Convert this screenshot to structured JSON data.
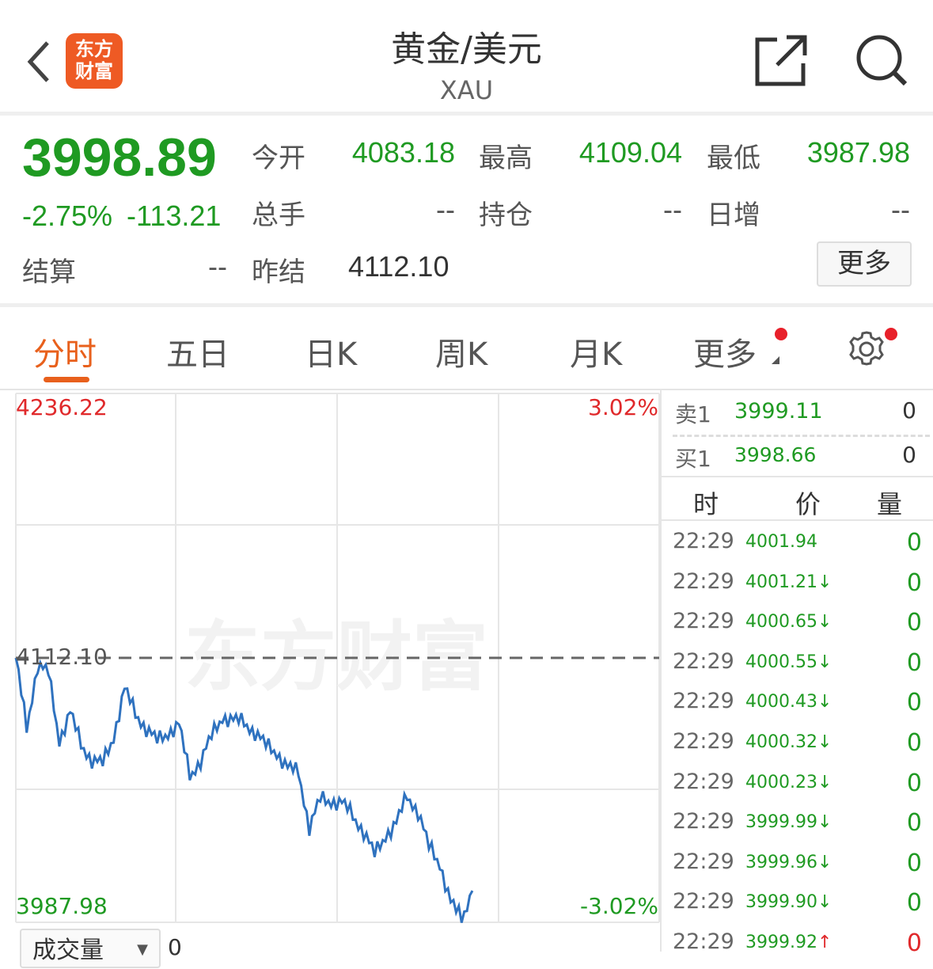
{
  "header": {
    "title": "黄金/美元",
    "subtitle": "XAU",
    "logo_text": [
      "东方",
      "财富"
    ],
    "icons": [
      "back-chevron-icon",
      "share-icon",
      "search-icon"
    ]
  },
  "quote": {
    "price": "3998.89",
    "change_pct": "-2.75%",
    "change": "-113.21",
    "open_label": "今开",
    "open": "4083.18",
    "high_label": "最高",
    "high": "4109.04",
    "low_label": "最低",
    "low": "3987.98",
    "volume_label": "总手",
    "volume": "--",
    "oi_label": "持仓",
    "oi": "--",
    "daily_inc_label": "日增",
    "daily_inc": "--",
    "settle_label": "结算",
    "settle": "--",
    "prev_settle_label": "昨结",
    "prev_settle": "4112.10",
    "more_label": "更多"
  },
  "tabs": [
    {
      "label": "分时",
      "active": true
    },
    {
      "label": "五日"
    },
    {
      "label": "日K"
    },
    {
      "label": "周K"
    },
    {
      "label": "月K"
    },
    {
      "label": "更多"
    }
  ],
  "chart": {
    "max_label": "4236.22",
    "min_label": "3987.98",
    "max_pct": "3.02%",
    "min_pct": "-3.02%",
    "prev_close_label": "4112.10",
    "ylim": [
      3987.98,
      4236.22
    ],
    "prev_close": 4112.1,
    "watermark": "东方财富",
    "prices": [
      4112.1,
      4079.0,
      4108.8,
      4105.0,
      4073.5,
      4086.5,
      4071.6,
      4064.2,
      4062.3,
      4075.3,
      4097.6,
      4086.0,
      4079.0,
      4073.0,
      4077.0,
      4080.9,
      4056.7,
      4064.0,
      4075.0,
      4084.6,
      4082.7,
      4082.0,
      4077.2,
      4071.0,
      4067.9,
      4060.4,
      4058.6,
      4032.6,
      4045.6,
      4045.0,
      4044.0,
      4038.1,
      4030.7,
      4019.6,
      4028.9,
      4034.4,
      4047.4,
      4040.0,
      4023.3,
      4015.8,
      3997.3,
      3989.8,
      4002.8
    ],
    "line_color": "#2f72bf",
    "volume_selector": "成交量",
    "volume_value": "0"
  },
  "orderbook": {
    "ask_label": "卖1",
    "ask_price": "3999.11",
    "ask_qty": "0",
    "bid_label": "买1",
    "bid_price": "3998.66",
    "bid_qty": "0",
    "col_time": "时",
    "col_price": "价",
    "col_qty": "量",
    "ticks": [
      {
        "time": "22:29",
        "price": "4001.94",
        "dir": "",
        "qty": "0"
      },
      {
        "time": "22:29",
        "price": "4001.21",
        "dir": "↓",
        "qty": "0"
      },
      {
        "time": "22:29",
        "price": "4000.65",
        "dir": "↓",
        "qty": "0"
      },
      {
        "time": "22:29",
        "price": "4000.55",
        "dir": "↓",
        "qty": "0"
      },
      {
        "time": "22:29",
        "price": "4000.43",
        "dir": "↓",
        "qty": "0"
      },
      {
        "time": "22:29",
        "price": "4000.32",
        "dir": "↓",
        "qty": "0"
      },
      {
        "time": "22:29",
        "price": "4000.23",
        "dir": "↓",
        "qty": "0"
      },
      {
        "time": "22:29",
        "price": "3999.99",
        "dir": "↓",
        "qty": "0"
      },
      {
        "time": "22:29",
        "price": "3999.96",
        "dir": "↓",
        "qty": "0"
      },
      {
        "time": "22:29",
        "price": "3999.90",
        "dir": "↓",
        "qty": "0"
      },
      {
        "time": "22:29",
        "price": "3999.92",
        "dir": "↑",
        "qty": "0"
      }
    ]
  },
  "colors": {
    "up": "#e0292b",
    "down": "#1f9a22",
    "accent": "#e8601c"
  }
}
